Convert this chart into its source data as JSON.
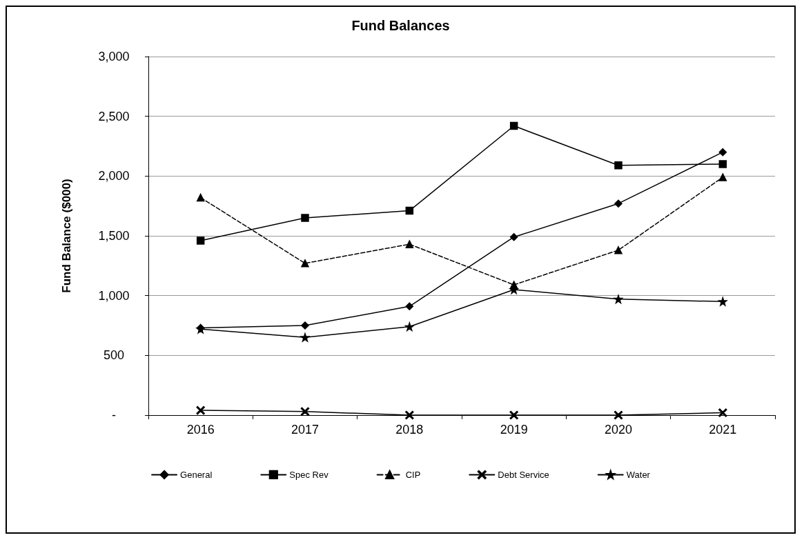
{
  "chart_data": {
    "type": "line",
    "title": "Fund Balances",
    "ylabel": "Fund Balance ($000)",
    "categories": [
      "2016",
      "2017",
      "2018",
      "2019",
      "2020",
      "2021"
    ],
    "series": [
      {
        "name": "General",
        "color": "#000000",
        "marker": "diamond",
        "line_style": "solid",
        "values": [
          730,
          750,
          910,
          1490,
          1770,
          2200
        ]
      },
      {
        "name": "Spec Rev",
        "color": "#000000",
        "marker": "square",
        "line_style": "solid",
        "values": [
          1460,
          1650,
          1710,
          2420,
          2090,
          2100
        ]
      },
      {
        "name": "CIP",
        "color": "#000000",
        "marker": "triangle",
        "line_style": "dashed",
        "values": [
          1820,
          1270,
          1430,
          1090,
          1380,
          1990
        ]
      },
      {
        "name": "Debt Service",
        "color": "#000000",
        "marker": "cross",
        "line_style": "solid",
        "values": [
          40,
          30,
          0,
          0,
          0,
          20
        ]
      },
      {
        "name": "Water",
        "color": "#000000",
        "marker": "star",
        "line_style": "solid",
        "values": [
          720,
          650,
          740,
          1050,
          970,
          950
        ]
      }
    ],
    "ylim": [
      0,
      3000
    ],
    "yticks": [
      {
        "value": 0,
        "label": "-"
      },
      {
        "value": 500,
        "label": "500"
      },
      {
        "value": 1000,
        "label": "1,000"
      },
      {
        "value": 1500,
        "label": "1,500"
      },
      {
        "value": 2000,
        "label": "2,000"
      },
      {
        "value": 2500,
        "label": "2,500"
      },
      {
        "value": 3000,
        "label": "3,000"
      }
    ],
    "grid": "y",
    "legend": "bottom"
  }
}
